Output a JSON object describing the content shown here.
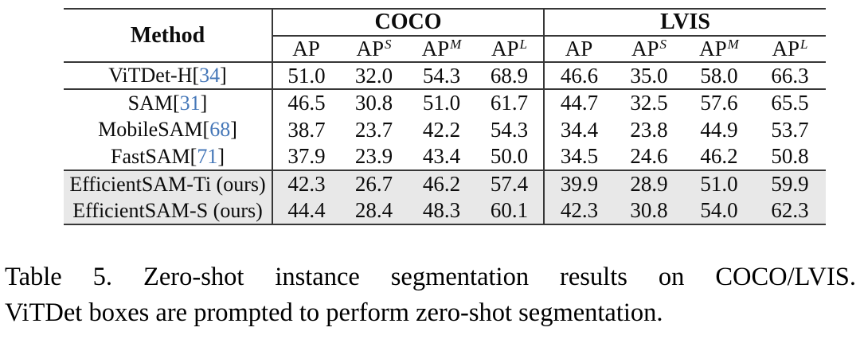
{
  "table": {
    "method_header": "Method",
    "group_headers": [
      {
        "label": "COCO"
      },
      {
        "label": "LVIS"
      }
    ],
    "col_headers": [
      {
        "base": "AP",
        "sup": ""
      },
      {
        "base": "AP",
        "sup": "S"
      },
      {
        "base": "AP",
        "sup": "M"
      },
      {
        "base": "AP",
        "sup": "L"
      },
      {
        "base": "AP",
        "sup": ""
      },
      {
        "base": "AP",
        "sup": "S"
      },
      {
        "base": "AP",
        "sup": "M"
      },
      {
        "base": "AP",
        "sup": "L"
      }
    ],
    "rows": [
      {
        "method_pre": "ViTDet-H[",
        "method_cite": "34",
        "method_post": "]",
        "values": [
          "51.0",
          "32.0",
          "54.3",
          "68.9",
          "46.6",
          "35.0",
          "58.0",
          "66.3"
        ]
      },
      {
        "method_pre": "SAM[",
        "method_cite": "31",
        "method_post": "]",
        "values": [
          "46.5",
          "30.8",
          "51.0",
          "61.7",
          "44.7",
          "32.5",
          "57.6",
          "65.5"
        ]
      },
      {
        "method_pre": "MobileSAM[",
        "method_cite": "68",
        "method_post": "]",
        "values": [
          "38.7",
          "23.7",
          "42.2",
          "54.3",
          "34.4",
          "23.8",
          "44.9",
          "53.7"
        ]
      },
      {
        "method_pre": "FastSAM[",
        "method_cite": "71",
        "method_post": "]",
        "values": [
          "37.9",
          "23.9",
          "43.4",
          "50.0",
          "34.5",
          "24.6",
          "46.2",
          "50.8"
        ]
      },
      {
        "method_pre": "EfficientSAM-Ti (ours)",
        "method_cite": "",
        "method_post": "",
        "values": [
          "42.3",
          "26.7",
          "46.2",
          "57.4",
          "39.9",
          "28.9",
          "51.0",
          "59.9"
        ]
      },
      {
        "method_pre": "EfficientSAM-S (ours)",
        "method_cite": "",
        "method_post": "",
        "values": [
          "44.4",
          "28.4",
          "48.3",
          "60.1",
          "42.3",
          "30.8",
          "54.0",
          "62.3"
        ]
      }
    ]
  },
  "caption": {
    "line1": "Table 5. Zero-shot instance segmentation results on COCO/LVIS.",
    "line2": "ViTDet boxes are prompted to perform zero-shot segmentation."
  },
  "colors": {
    "citation_blue": "#4577b8",
    "row_highlight": "#e8e8e8",
    "rule": "#373737"
  }
}
